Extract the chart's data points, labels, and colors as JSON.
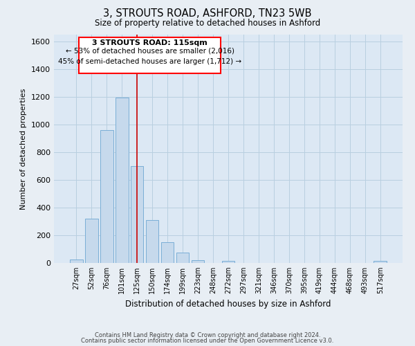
{
  "title": "3, STROUTS ROAD, ASHFORD, TN23 5WB",
  "subtitle": "Size of property relative to detached houses in Ashford",
  "xlabel": "Distribution of detached houses by size in Ashford",
  "ylabel": "Number of detached properties",
  "bar_labels": [
    "27sqm",
    "52sqm",
    "76sqm",
    "101sqm",
    "125sqm",
    "150sqm",
    "174sqm",
    "199sqm",
    "223sqm",
    "248sqm",
    "272sqm",
    "297sqm",
    "321sqm",
    "346sqm",
    "370sqm",
    "395sqm",
    "419sqm",
    "444sqm",
    "468sqm",
    "493sqm",
    "517sqm"
  ],
  "bar_heights": [
    25,
    320,
    960,
    1195,
    700,
    310,
    150,
    75,
    20,
    0,
    15,
    0,
    0,
    0,
    0,
    0,
    0,
    0,
    0,
    0,
    15
  ],
  "bar_color": "#c6d9ec",
  "bar_edge_color": "#7aaed6",
  "ylim": [
    0,
    1650
  ],
  "yticks": [
    0,
    200,
    400,
    600,
    800,
    1000,
    1200,
    1400,
    1600
  ],
  "annotation_line1": "3 STROUTS ROAD: 115sqm",
  "annotation_line2": "← 53% of detached houses are smaller (2,016)",
  "annotation_line3": "45% of semi-detached houses are larger (1,712) →",
  "property_bar_index": 4,
  "vline_color": "#cc0000",
  "footer_line1": "Contains HM Land Registry data © Crown copyright and database right 2024.",
  "footer_line2": "Contains public sector information licensed under the Open Government Licence v3.0.",
  "bg_color": "#e8eef4",
  "plot_bg_color": "#dce8f4",
  "grid_color": "#b8cfe0"
}
